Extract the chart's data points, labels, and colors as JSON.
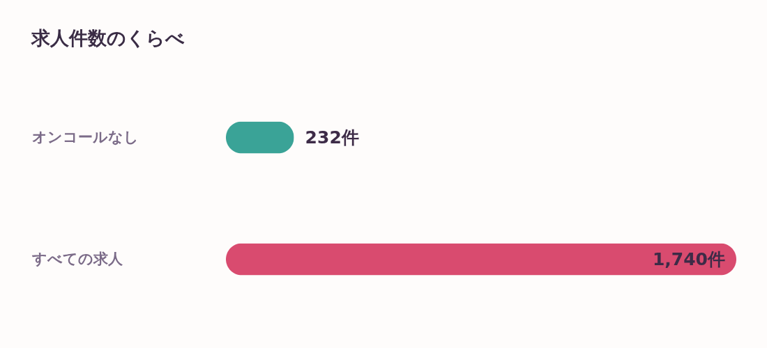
{
  "chart_data": {
    "type": "bar",
    "orientation": "horizontal",
    "title": "求人件数のくらべ",
    "categories": [
      "オンコールなし",
      "すべての求人"
    ],
    "values": [
      232,
      1740
    ],
    "value_labels": [
      "232件",
      "1,740件"
    ],
    "colors": [
      "#3aa397",
      "#d94b6f"
    ],
    "xlim": [
      0,
      1740
    ],
    "tick_labels": "y"
  }
}
